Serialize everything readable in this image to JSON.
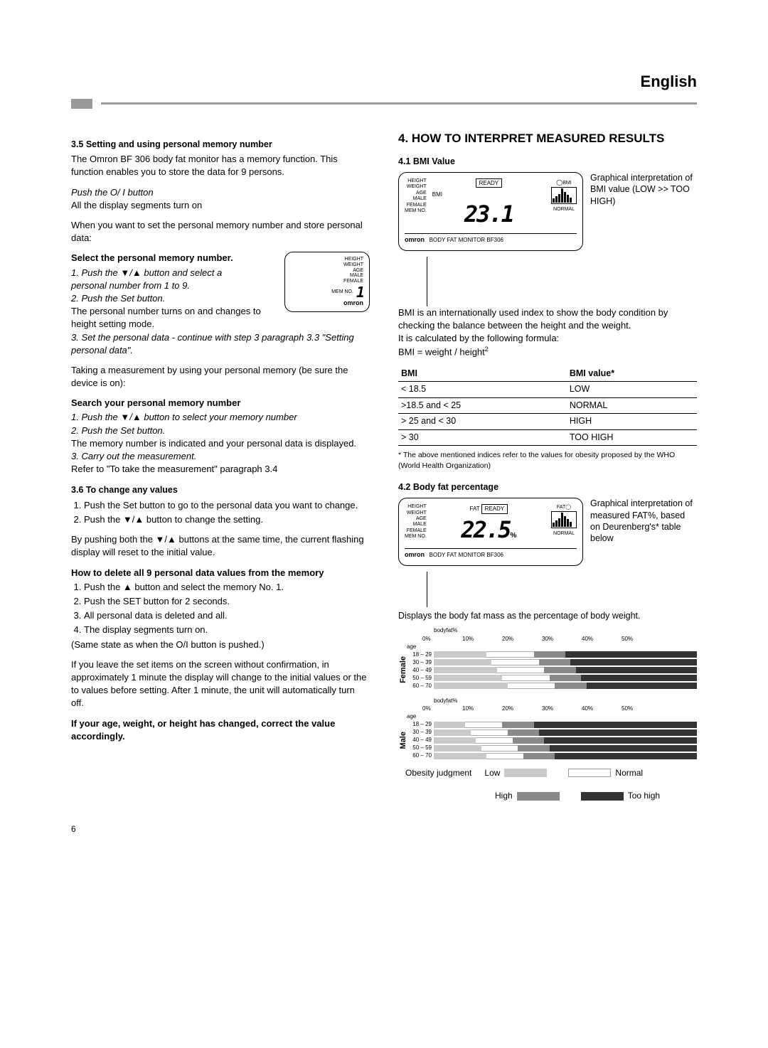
{
  "lang": "English",
  "page_number": "6",
  "left": {
    "h35": "3.5  Setting and using personal memory number",
    "p1": "The Omron BF 306 body fat monitor has a memory function. This function enables you to store the data for 9 persons.",
    "p2a": "Push the O/ I button",
    "p2b": "All the display segments turn on",
    "p3": "When you want to set the personal memory number and store personal data:",
    "h_sel": "Select the personal memory number.",
    "sel1a": "1. Push the ▼/▲ button and select a",
    "sel1b": "    personal number from 1 to 9.",
    "sel2": "2. Push the Set button.",
    "sel_p1": "The personal number turns on and changes to height setting mode.",
    "sel3": "3. Set the personal data - continue with step 3 paragraph 3.3 \"Setting personal data\".",
    "p4": "Taking a measurement by using your personal memory (be sure the device is on):",
    "h_search": "Search your personal memory number",
    "srch1": "1. Push the ▼/▲ button to select your memory number",
    "srch2": "2. Push the Set button.",
    "srch_p": "The memory number is indicated and your personal data is displayed.",
    "srch3": "3. Carry out the measurement.",
    "srch_ref": "Refer to \"To take the measurement\" paragraph 3.4",
    "h36": "3.6 To change any values",
    "chg1": "Push the Set button to go to the personal data you want to change.",
    "chg2": "Push the ▼/▲ button to change the setting.",
    "chg_p": "By pushing both the ▼/▲ buttons at the same time, the current flashing display will reset to the initial value.",
    "h_del": "How to delete all 9 personal data values from the memory",
    "del1": "Push the ▲ button and select the memory No. 1.",
    "del2": "Push the SET button for 2 seconds.",
    "del3": "All personal data is deleted and all.",
    "del4": "The display segments turn on.",
    "del_p": "(Same state as when the O/I button is pushed.)",
    "leave_p": "If you leave the set items on the screen without confirmation, in approximately 1 minute the display will change to the initial values or the to values before setting. After 1 minute, the unit will automatically turn off.",
    "correct": "If your age, weight, or height has changed, correct the value accordingly.",
    "device_labels": [
      "HEIGHT",
      "WEIGHT",
      "AGE",
      "MALE",
      "FEMALE",
      "MEM NO."
    ],
    "device_brand": "omron",
    "device_num": "1"
  },
  "right": {
    "h4": "4.  HOW TO INTERPRET MEASURED RESULTS",
    "h41": "4.1  BMI Value",
    "bmi_note": "Graphical interpretation of BMI value (LOW >> TOO HIGH)",
    "bmi_display": {
      "ready": "READY",
      "bmi_label": "BMI",
      "value": "23.1",
      "normal": "NORMAL",
      "brand": "omron",
      "model": "BODY FAT MONITOR BF306",
      "circle": "BMI"
    },
    "bmi_p1": "BMI is an internationally used index to show the body condition by checking the balance between the height and the weight.",
    "bmi_p2": "It is calculated by the following formula:",
    "bmi_formula_a": "BMI = weight / height",
    "bmi_formula_sup": "2",
    "bmi_table": {
      "h1": "BMI",
      "h2": "BMI value*",
      "rows": [
        [
          "< 18.5",
          "LOW"
        ],
        [
          ">18.5 and < 25",
          "NORMAL"
        ],
        [
          "> 25 and < 30",
          "HIGH"
        ],
        [
          "> 30",
          "TOO HIGH"
        ]
      ]
    },
    "bmi_foot": "* The above mentioned indices refer to the values for obesity proposed by the WHO (World Health Organization)",
    "h42": "4.2  Body fat percentage",
    "fat_note": "Graphical interpretation of measured FAT%, based on Deurenberg's* table below",
    "fat_display": {
      "fat": "FAT",
      "ready": "READY",
      "value": "22.5",
      "pct": "%",
      "normal": "NORMAL",
      "circle": "FAT"
    },
    "fat_caption": "Displays the body fat mass as the percentage of body weight.",
    "scale_label": "bodyfat%",
    "scale_ticks": [
      "0%",
      "10%",
      "20%",
      "30%",
      "40%",
      "50%"
    ],
    "age_label": "age",
    "female_label": "Female",
    "male_label": "Male",
    "female_rows": [
      {
        "age": "18 – 29",
        "low": 20,
        "norm": 18,
        "high": 12,
        "too": 50
      },
      {
        "age": "30 – 39",
        "low": 22,
        "norm": 18,
        "high": 12,
        "too": 48
      },
      {
        "age": "40 – 49",
        "low": 24,
        "norm": 18,
        "high": 12,
        "too": 46
      },
      {
        "age": "50 – 59",
        "low": 26,
        "norm": 18,
        "high": 12,
        "too": 44
      },
      {
        "age": "60 – 70",
        "low": 28,
        "norm": 18,
        "high": 12,
        "too": 42
      }
    ],
    "male_rows": [
      {
        "age": "18 – 29",
        "low": 12,
        "norm": 14,
        "high": 12,
        "too": 62
      },
      {
        "age": "30 – 39",
        "low": 14,
        "norm": 14,
        "high": 12,
        "too": 60
      },
      {
        "age": "40 – 49",
        "low": 16,
        "norm": 14,
        "high": 12,
        "too": 58
      },
      {
        "age": "50 – 59",
        "low": 18,
        "norm": 14,
        "high": 12,
        "too": 56
      },
      {
        "age": "60 – 70",
        "low": 20,
        "norm": 14,
        "high": 12,
        "too": 54
      }
    ],
    "legend": {
      "judg": "Obesity judgment",
      "low": "Low",
      "norm": "Normal",
      "high": "High",
      "too": "Too high"
    },
    "colors": {
      "low": "#c9c9c9",
      "norm": "#ffffff",
      "high": "#8a8a8a",
      "too": "#333333"
    }
  }
}
